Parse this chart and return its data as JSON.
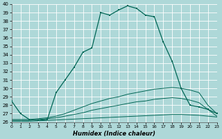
{
  "xlabel": "Humidex (Indice chaleur)",
  "bg_color": "#aed8d8",
  "grid_color": "#c8e8e8",
  "line_color": "#006655",
  "xlim": [
    0,
    23
  ],
  "ylim": [
    26,
    40
  ],
  "yticks": [
    26,
    27,
    28,
    29,
    30,
    31,
    32,
    33,
    34,
    35,
    36,
    37,
    38,
    39,
    40
  ],
  "xticks": [
    0,
    1,
    2,
    3,
    4,
    5,
    6,
    7,
    8,
    9,
    10,
    11,
    12,
    13,
    14,
    15,
    16,
    17,
    18,
    19,
    20,
    21,
    22,
    23
  ],
  "humidex": [
    28.5,
    27.0,
    26.3,
    26.2,
    26.3,
    29.5,
    31.0,
    32.5,
    34.3,
    34.8,
    39.0,
    38.7,
    39.3,
    39.8,
    39.5,
    38.7,
    38.5,
    35.5,
    33.2,
    30.0,
    28.0,
    27.8,
    27.5,
    27.0
  ],
  "line_top": [
    26.3,
    26.3,
    26.3,
    26.4,
    26.5,
    26.7,
    27.0,
    27.4,
    27.8,
    28.2,
    28.5,
    28.8,
    29.0,
    29.3,
    29.5,
    29.7,
    29.9,
    30.0,
    30.1,
    30.0,
    29.8,
    29.5,
    28.0,
    27.0
  ],
  "line_mid": [
    26.2,
    26.2,
    26.2,
    26.3,
    26.4,
    26.5,
    26.7,
    26.9,
    27.1,
    27.4,
    27.6,
    27.8,
    28.0,
    28.2,
    28.4,
    28.5,
    28.7,
    28.8,
    28.9,
    28.8,
    28.6,
    28.3,
    27.5,
    26.7
  ],
  "line_bot": [
    26.1,
    26.1,
    26.1,
    26.15,
    26.2,
    26.25,
    26.3,
    26.35,
    26.4,
    26.45,
    26.5,
    26.55,
    26.6,
    26.65,
    26.7,
    26.75,
    26.8,
    26.85,
    26.9,
    26.9,
    26.85,
    26.8,
    26.7,
    26.6
  ]
}
